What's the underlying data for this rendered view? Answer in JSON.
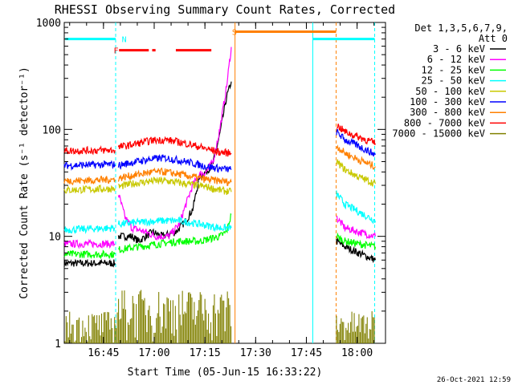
{
  "chart_data": {
    "type": "line",
    "title": "RHESSI Observing Summary Count Rates, Corrected",
    "xlabel": "Start Time (05-Jun-15 16:33:22)",
    "ylabel": "Corrected Count Rate (s⁻¹ detector⁻¹)",
    "yscale": "log",
    "ylim": [
      1,
      1000
    ],
    "xlim_minutes": [
      0,
      95
    ],
    "xticks": [
      {
        "label": "16:45",
        "t": 11.6
      },
      {
        "label": "17:00",
        "t": 26.6
      },
      {
        "label": "17:15",
        "t": 41.6
      },
      {
        "label": "17:30",
        "t": 56.6
      },
      {
        "label": "17:45",
        "t": 71.6
      },
      {
        "label": "18:00",
        "t": 86.6
      }
    ],
    "yticks": [
      {
        "label": "1",
        "v": 1
      },
      {
        "label": "10",
        "v": 10
      },
      {
        "label": "100",
        "v": 100
      },
      {
        "label": "1000",
        "v": 1000
      }
    ],
    "legend_header": [
      "Det 1,3,5,6,7,9,",
      "Att 0"
    ],
    "series": [
      {
        "name": "3 - 6 keV",
        "color": "#000000",
        "segments": [
          [
            [
              0,
              5.6
            ],
            [
              15,
              5.6
            ]
          ],
          [
            [
              16,
              10
            ],
            [
              20,
              10
            ],
            [
              22,
              9
            ],
            [
              26,
              11
            ],
            [
              29,
              10
            ],
            [
              33,
              11
            ],
            [
              36,
              14
            ],
            [
              38,
              18
            ],
            [
              40,
              36
            ],
            [
              42,
              40
            ],
            [
              44,
              48
            ],
            [
              46,
              90
            ],
            [
              48,
              200
            ],
            [
              49.4,
              280
            ]
          ],
          [
            [
              80.5,
              9
            ],
            [
              83,
              8
            ],
            [
              87,
              7
            ],
            [
              92,
              6
            ]
          ]
        ]
      },
      {
        "name": "6 - 12 keV",
        "color": "#ff00ff",
        "segments": [
          [
            [
              0,
              8.5
            ],
            [
              15,
              8.5
            ]
          ],
          [
            [
              16,
              25
            ],
            [
              18,
              15
            ],
            [
              20,
              12
            ],
            [
              24,
              11
            ],
            [
              27,
              10
            ],
            [
              31,
              10
            ],
            [
              34,
              13
            ],
            [
              36,
              20
            ],
            [
              38,
              30
            ],
            [
              40,
              38
            ],
            [
              42,
              40
            ],
            [
              44,
              50
            ],
            [
              46,
              100
            ],
            [
              48,
              250
            ],
            [
              49.4,
              590
            ]
          ],
          [
            [
              80.5,
              15
            ],
            [
              83,
              12
            ],
            [
              87,
              11
            ],
            [
              92,
              10
            ]
          ]
        ]
      },
      {
        "name": "12 - 25 keV",
        "color": "#00ff00",
        "segments": [
          [
            [
              0,
              6.8
            ],
            [
              15,
              6.8
            ]
          ],
          [
            [
              16,
              7.5
            ],
            [
              22,
              8
            ],
            [
              28,
              8.5
            ],
            [
              34,
              9
            ],
            [
              40,
              9
            ],
            [
              46,
              10
            ],
            [
              48,
              11
            ],
            [
              49.4,
              16
            ]
          ],
          [
            [
              80.5,
              10
            ],
            [
              83,
              9
            ],
            [
              87,
              8.5
            ],
            [
              92,
              8
            ]
          ]
        ]
      },
      {
        "name": "25 - 50 keV",
        "color": "#00ffff",
        "segments": [
          [
            [
              0,
              11.5
            ],
            [
              15,
              12
            ]
          ],
          [
            [
              16,
              13
            ],
            [
              22,
              13.5
            ],
            [
              28,
              14
            ],
            [
              34,
              14
            ],
            [
              40,
              13
            ],
            [
              46,
              12
            ],
            [
              49.4,
              12
            ]
          ],
          [
            [
              80.5,
              25
            ],
            [
              83,
              20
            ],
            [
              87,
              17
            ],
            [
              92,
              14
            ]
          ]
        ]
      },
      {
        "name": "50 - 100 keV",
        "color": "#c8c800",
        "segments": [
          [
            [
              0,
              27
            ],
            [
              15,
              28
            ]
          ],
          [
            [
              16,
              29
            ],
            [
              20,
              31
            ],
            [
              26,
              33
            ],
            [
              30,
              33
            ],
            [
              36,
              31
            ],
            [
              42,
              29
            ],
            [
              46,
              27
            ],
            [
              49.4,
              26
            ]
          ],
          [
            [
              80.5,
              50
            ],
            [
              83,
              42
            ],
            [
              87,
              36
            ],
            [
              92,
              31
            ]
          ]
        ]
      },
      {
        "name": "100 - 300 keV",
        "color": "#0000ff",
        "segments": [
          [
            [
              0,
              46
            ],
            [
              15,
              47
            ]
          ],
          [
            [
              16,
              46
            ],
            [
              20,
              49
            ],
            [
              26,
              53
            ],
            [
              30,
              54
            ],
            [
              36,
              50
            ],
            [
              42,
              45
            ],
            [
              46,
              43
            ],
            [
              49.4,
              42
            ]
          ],
          [
            [
              80.5,
              95
            ],
            [
              83,
              80
            ],
            [
              87,
              70
            ],
            [
              92,
              58
            ]
          ]
        ]
      },
      {
        "name": "300 - 800 keV",
        "color": "#ff8000",
        "segments": [
          [
            [
              0,
              33
            ],
            [
              15,
              34
            ]
          ],
          [
            [
              16,
              35
            ],
            [
              20,
              37
            ],
            [
              26,
              40
            ],
            [
              30,
              40
            ],
            [
              36,
              37
            ],
            [
              42,
              34
            ],
            [
              46,
              33
            ],
            [
              49.4,
              32
            ]
          ],
          [
            [
              80.5,
              70
            ],
            [
              83,
              60
            ],
            [
              87,
              52
            ],
            [
              92,
              45
            ]
          ]
        ]
      },
      {
        "name": "800 - 7000 keV",
        "color": "#ff0000",
        "segments": [
          [
            [
              0,
              63
            ],
            [
              15,
              64
            ]
          ],
          [
            [
              16,
              68
            ],
            [
              20,
              72
            ],
            [
              26,
              79
            ],
            [
              30,
              80
            ],
            [
              36,
              74
            ],
            [
              42,
              66
            ],
            [
              46,
              61
            ],
            [
              49.4,
              60
            ]
          ],
          [
            [
              80.5,
              110
            ],
            [
              83,
              95
            ],
            [
              87,
              85
            ],
            [
              92,
              74
            ]
          ]
        ]
      },
      {
        "name": "7000 - 15000 keV",
        "color": "#808000",
        "segments": []
      }
    ],
    "annotations": [
      {
        "text": "N",
        "t": 17,
        "v": 700,
        "color": "#00ffff"
      },
      {
        "text": "F",
        "t": 14.6,
        "v": 550,
        "color": "#ff0000"
      },
      {
        "text": "S",
        "t": 49.6,
        "v": 820,
        "color": "#ff8000"
      }
    ],
    "footer_date": "26-Oct-2021 12:59"
  }
}
